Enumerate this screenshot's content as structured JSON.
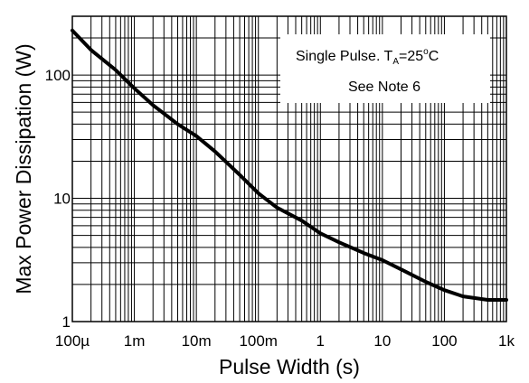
{
  "chart_data": {
    "type": "line",
    "title": "",
    "xlabel": "Pulse Width (s)",
    "ylabel": "Max Power Dissipation (W)",
    "x_scale": "log",
    "y_scale": "log",
    "xlim": [
      0.0001,
      1000
    ],
    "ylim": [
      1,
      300
    ],
    "grid": true,
    "x_ticks": [
      {
        "value": 0.0001,
        "label": "100µ"
      },
      {
        "value": 0.001,
        "label": "1m"
      },
      {
        "value": 0.01,
        "label": "10m"
      },
      {
        "value": 0.1,
        "label": "100m"
      },
      {
        "value": 1,
        "label": "1"
      },
      {
        "value": 10,
        "label": "10"
      },
      {
        "value": 100,
        "label": "100"
      },
      {
        "value": 1000,
        "label": "1k"
      }
    ],
    "y_ticks": [
      {
        "value": 1,
        "label": "1"
      },
      {
        "value": 10,
        "label": "10"
      },
      {
        "value": 100,
        "label": "100"
      }
    ],
    "annotation": {
      "line1_prefix": "Single Pulse. T",
      "line1_subscript": "A",
      "line1_suffix": "=25",
      "line1_degree": "o",
      "line1_unit": "C",
      "line2": "See Note 6"
    },
    "series": [
      {
        "x": [
          0.0001,
          0.0002,
          0.0005,
          0.001,
          0.002,
          0.005,
          0.01,
          0.02,
          0.05,
          0.1,
          0.2,
          0.5,
          1,
          2,
          5,
          10,
          20,
          50,
          100,
          200,
          500,
          1000
        ],
        "y": [
          230,
          160,
          110,
          78,
          57,
          40,
          32,
          24,
          15.5,
          11,
          8.4,
          6.6,
          5.2,
          4.4,
          3.6,
          3.15,
          2.65,
          2.1,
          1.8,
          1.6,
          1.5,
          1.5
        ]
      }
    ]
  }
}
